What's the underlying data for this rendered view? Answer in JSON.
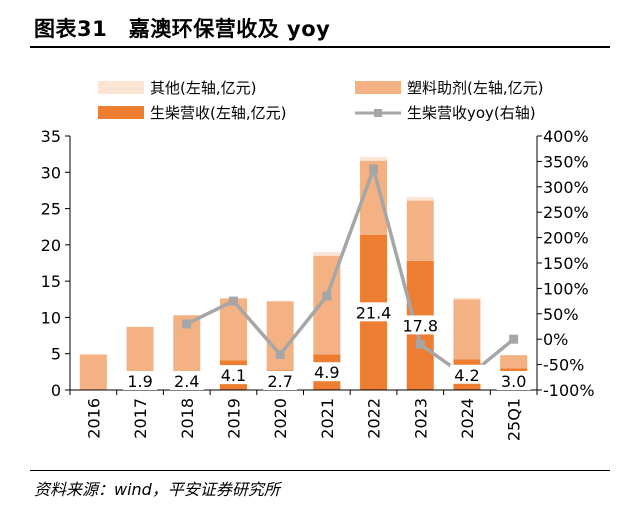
{
  "title": "图表31　嘉澳环保营收及 yoy",
  "source": "资料来源：wind，平安证券研究所",
  "colors": {
    "other": "#fce4d4",
    "plastic": "#f4b183",
    "biodiesel": "#ed7d31",
    "yoy": "#a6a6a6",
    "axis": "#000000"
  },
  "chart_data": {
    "type": "bar",
    "stacked": true,
    "categories": [
      "2016",
      "2017",
      "2018",
      "2019",
      "2020",
      "2021",
      "2022",
      "2023",
      "2024",
      "25Q1"
    ],
    "series": [
      {
        "name": "生柴营收(左轴,亿元)",
        "key": "biodiesel",
        "values": [
          0,
          1.9,
          2.4,
          4.1,
          2.7,
          4.9,
          21.4,
          17.8,
          4.2,
          3.0
        ]
      },
      {
        "name": "塑料助剂(左轴,亿元)",
        "key": "plastic",
        "values": [
          4.9,
          6.8,
          7.9,
          8.5,
          9.5,
          13.6,
          10.2,
          8.3,
          8.3,
          1.8
        ]
      },
      {
        "name": "其他(左轴,亿元)",
        "key": "other",
        "values": [
          0,
          0,
          0,
          0.1,
          0.1,
          0.5,
          0.5,
          0.5,
          0.2,
          0
        ]
      }
    ],
    "line": {
      "name": "生柴营收yoy(右轴)",
      "key": "yoy",
      "values": [
        null,
        null,
        30,
        75,
        -30,
        85,
        335,
        -10,
        -75,
        0
      ]
    },
    "data_labels": [
      "",
      "1.9",
      "2.4",
      "4.1",
      "2.7",
      "4.9",
      "21.4",
      "17.8",
      "4.2",
      "3.0"
    ],
    "left_axis": {
      "min": 0,
      "max": 35,
      "step": 5,
      "ticks": [
        "0",
        "5",
        "10",
        "15",
        "20",
        "25",
        "30",
        "35"
      ]
    },
    "right_axis": {
      "min": -100,
      "max": 400,
      "step": 50,
      "ticks": [
        "-100%",
        "-50%",
        "0%",
        "50%",
        "100%",
        "150%",
        "200%",
        "250%",
        "300%",
        "350%",
        "400%"
      ]
    },
    "legend": [
      {
        "label": "其他(左轴,亿元)",
        "key": "other",
        "kind": "box"
      },
      {
        "label": "塑料助剂(左轴,亿元)",
        "key": "plastic",
        "kind": "box"
      },
      {
        "label": "生柴营收(左轴,亿元)",
        "key": "biodiesel",
        "kind": "box"
      },
      {
        "label": "生柴营收yoy(右轴)",
        "key": "yoy",
        "kind": "line"
      }
    ],
    "legend_position": "top",
    "grid": false
  }
}
